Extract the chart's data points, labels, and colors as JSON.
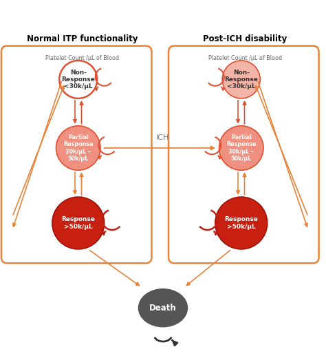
{
  "title_left": "Normal ITP functionality",
  "title_right": "Post-ICH disability",
  "subtitle": "Platelet Count /μL of Blood",
  "ich_label": "ICH",
  "box_color": "#e8833a",
  "arrow_color_light": "#e8833a",
  "arrow_color_mid": "#e05030",
  "arrow_color_dark": "#c02010",
  "nr_fill_left": "#ffffff",
  "nr_edge_left": "#e05030",
  "nr_fill_right": "#f2b5a8",
  "nr_edge_right": "#e05030",
  "pr_fill": "#f09080",
  "pr_edge": "#e05030",
  "resp_fill": "#c82010",
  "resp_edge": "#a01008",
  "nr_text_left": "#333333",
  "nr_text_right": "#333333",
  "pr_text": "#ffffff",
  "resp_text": "#ffffff",
  "death_fill": "#555555",
  "death_text": "#ffffff",
  "background": "#ffffff"
}
